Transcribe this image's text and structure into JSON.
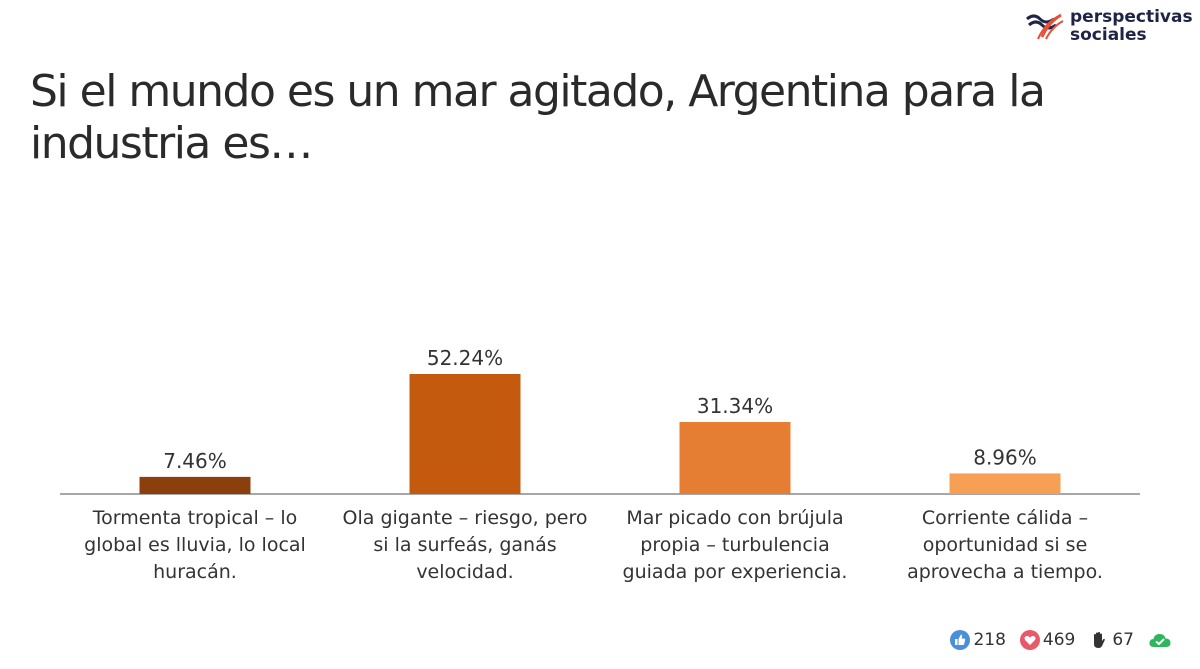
{
  "brand": {
    "line1": "perspectivas",
    "line2": "sociales",
    "colors": {
      "navy": "#1f2346",
      "red": "#e4513a"
    }
  },
  "title": "Si el mundo es un mar agitado, Argentina para la industria es…",
  "chart_data": {
    "type": "bar",
    "title": "Si el mundo es un mar agitado, Argentina para la industria es…",
    "xlabel": "",
    "ylabel": "",
    "ylim": [
      0,
      60
    ],
    "grid": false,
    "categories": [
      [
        "Tormenta tropical – lo",
        "global es lluvia, lo local",
        "huracán."
      ],
      [
        "Ola gigante – riesgo, pero",
        "si la surfeás, ganás",
        "velocidad."
      ],
      [
        "Mar picado con brújula",
        "propia – turbulencia",
        "guiada por experiencia."
      ],
      [
        "Corriente cálida –",
        "oportunidad si se",
        "aprovecha a tiempo."
      ]
    ],
    "values": [
      7.46,
      52.24,
      31.34,
      8.96
    ],
    "labels": [
      "7.46%",
      "52.24%",
      "31.34%",
      "8.96%"
    ],
    "colors": [
      "#8b3f0c",
      "#c45a0d",
      "#e57e33",
      "#f7a055"
    ]
  },
  "reactions": [
    {
      "icon": "thumbs-up-icon",
      "count": "218",
      "color": "#4a90d9"
    },
    {
      "icon": "heart-icon",
      "count": "469",
      "color": "#e8596b"
    },
    {
      "icon": "raised-hand-icon",
      "count": "67",
      "color": "#333333"
    },
    {
      "icon": "cloud-check-icon",
      "count": "",
      "color": "#2fb55d"
    }
  ]
}
